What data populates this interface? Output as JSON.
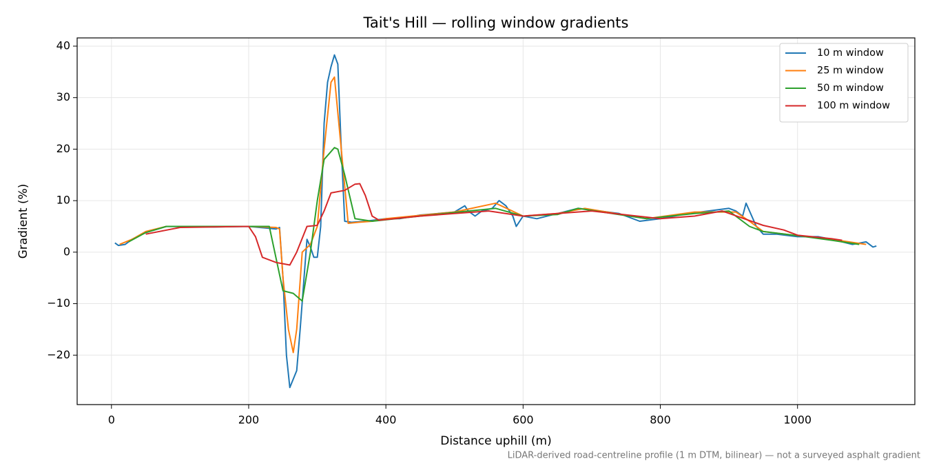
{
  "chart_data": {
    "type": "line",
    "title": "Tait's Hill — rolling window gradients",
    "x_label": "Distance uphill (m)",
    "y_label": "Gradient (%)",
    "footnote": "LiDAR-derived road-centreline profile (1 m DTM, bilinear) — not a surveyed asphalt gradient",
    "xlim": [
      -50,
      1171
    ],
    "ylim": [
      -29.6,
      41.6
    ],
    "xticks": [
      0,
      200,
      400,
      600,
      800,
      1000
    ],
    "yticks": [
      {
        "value": -20,
        "label": "−20"
      },
      {
        "value": -10,
        "label": "−10"
      },
      0,
      10,
      20,
      30,
      40
    ],
    "grid": true,
    "legend": "upper right",
    "series": [
      {
        "name": "10 m window",
        "color": "#1f77b4",
        "x": [
          5,
          10,
          20,
          30,
          50,
          80,
          150,
          200,
          240,
          245,
          250,
          255,
          260,
          270,
          275,
          285,
          290,
          295,
          300,
          305,
          310,
          315,
          320,
          325,
          330,
          335,
          340,
          350,
          370,
          400,
          420,
          450,
          500,
          515,
          520,
          530,
          540,
          555,
          565,
          575,
          585,
          590,
          600,
          620,
          650,
          680,
          700,
          740,
          770,
          800,
          840,
          870,
          900,
          910,
          920,
          925,
          940,
          950,
          970,
          1000,
          1030,
          1050,
          1080,
          1100,
          1110,
          1115
        ],
        "values": [
          1.8,
          1.3,
          1.5,
          2.5,
          3.8,
          5,
          4.9,
          5,
          4.5,
          4.8,
          -5,
          -20,
          -26.3,
          -23,
          -15,
          2.5,
          1,
          -1,
          -1,
          5,
          25,
          33,
          36,
          38.3,
          36.5,
          20,
          6,
          5.8,
          6,
          6.5,
          6.5,
          7.2,
          7.8,
          9,
          8,
          7,
          8,
          8.5,
          10,
          9,
          7,
          5,
          7,
          6.5,
          7.5,
          8.5,
          8.2,
          7.5,
          6,
          6.5,
          7.5,
          8,
          8.5,
          8,
          7,
          9.5,
          5,
          3.5,
          3.5,
          3,
          3,
          2.5,
          1.5,
          2,
          1,
          1.2
        ]
      },
      {
        "name": "25 m window",
        "color": "#ff7f0e",
        "x": [
          12,
          30,
          50,
          80,
          200,
          240,
          245,
          250,
          258,
          265,
          270,
          278,
          290,
          300,
          310,
          320,
          325,
          335,
          345,
          360,
          380,
          400,
          500,
          560,
          600,
          650,
          690,
          780,
          850,
          910,
          930,
          950,
          1000,
          1050,
          1100
        ],
        "values": [
          1.5,
          2.5,
          4,
          5,
          5,
          4.8,
          4.5,
          -5,
          -15,
          -19.5,
          -15,
          0,
          1.5,
          5,
          20,
          33,
          34,
          20,
          5.6,
          5.8,
          6,
          6.5,
          7.8,
          9.5,
          7,
          7.5,
          8.5,
          6.5,
          7.8,
          7.8,
          6,
          4,
          3.2,
          2.5,
          1.5
        ]
      },
      {
        "name": "50 m window",
        "color": "#2ca02c",
        "x": [
          25,
          50,
          80,
          210,
          230,
          250,
          265,
          278,
          290,
          300,
          310,
          325,
          330,
          340,
          355,
          380,
          450,
          500,
          560,
          600,
          650,
          680,
          780,
          850,
          900,
          930,
          950,
          1000,
          1050,
          1090
        ],
        "values": [
          2,
          3.8,
          5,
          5,
          5,
          -7.5,
          -8,
          -9.5,
          0,
          10,
          18,
          20.3,
          20,
          15,
          6.5,
          6,
          7,
          7.7,
          8.5,
          7,
          7.3,
          8.5,
          6.5,
          7.5,
          8,
          5,
          4,
          3.2,
          2.3,
          1.5
        ]
      },
      {
        "name": "100 m window",
        "color": "#d62728",
        "x": [
          50,
          100,
          200,
          210,
          220,
          240,
          260,
          270,
          285,
          300,
          310,
          320,
          340,
          355,
          362,
          370,
          380,
          390,
          450,
          500,
          550,
          600,
          650,
          700,
          800,
          850,
          890,
          950,
          980,
          1000,
          1050,
          1065
        ],
        "values": [
          3.5,
          4.8,
          5,
          3,
          -1,
          -2,
          -2.5,
          0,
          5,
          5.2,
          8,
          11.5,
          12,
          13.2,
          13.3,
          11,
          7,
          6.2,
          7,
          7.5,
          8,
          7,
          7.5,
          8,
          6.5,
          7,
          8,
          5.2,
          4.3,
          3.3,
          2.6,
          2.3
        ]
      }
    ]
  }
}
